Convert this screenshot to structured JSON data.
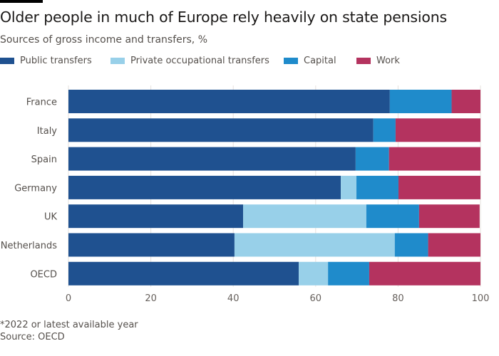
{
  "header": {
    "title": "Older people in much of Europe rely heavily on state pensions",
    "subtitle": "Sources of gross income and transfers, %"
  },
  "footer": {
    "note": "*2022 or latest available year",
    "source": "Source: OECD"
  },
  "chart_data": {
    "type": "bar",
    "orientation": "horizontal",
    "stacked": true,
    "title": "Older people in much of Europe rely heavily on state pensions",
    "subtitle": "Sources of gross income and transfers, %",
    "xlabel": "",
    "ylabel": "",
    "xlim": [
      0,
      100
    ],
    "xticks": [
      0,
      20,
      40,
      60,
      80,
      100
    ],
    "grid": true,
    "legend_position": "top-left",
    "categories": [
      "France",
      "Italy",
      "Spain",
      "Germany",
      "UK",
      "Netherlands",
      "OECD"
    ],
    "series": [
      {
        "name": "Public transfers",
        "color": "#1f5190",
        "values": [
          78.0,
          74.0,
          69.7,
          66.1,
          42.4,
          40.3,
          55.9
        ]
      },
      {
        "name": "Private occupational transfers",
        "color": "#98d0e9",
        "values": [
          0.0,
          0.0,
          0.0,
          3.8,
          29.9,
          38.9,
          7.1
        ]
      },
      {
        "name": "Capital",
        "color": "#1f8bcb",
        "values": [
          15.0,
          5.4,
          8.1,
          10.2,
          12.8,
          8.1,
          10.0
        ]
      },
      {
        "name": "Work",
        "color": "#b4335f",
        "values": [
          7.0,
          20.6,
          22.2,
          19.9,
          14.7,
          12.7,
          27.0
        ]
      }
    ],
    "notes": [
      "*2022 or latest available year"
    ],
    "source": "Source: OECD"
  }
}
